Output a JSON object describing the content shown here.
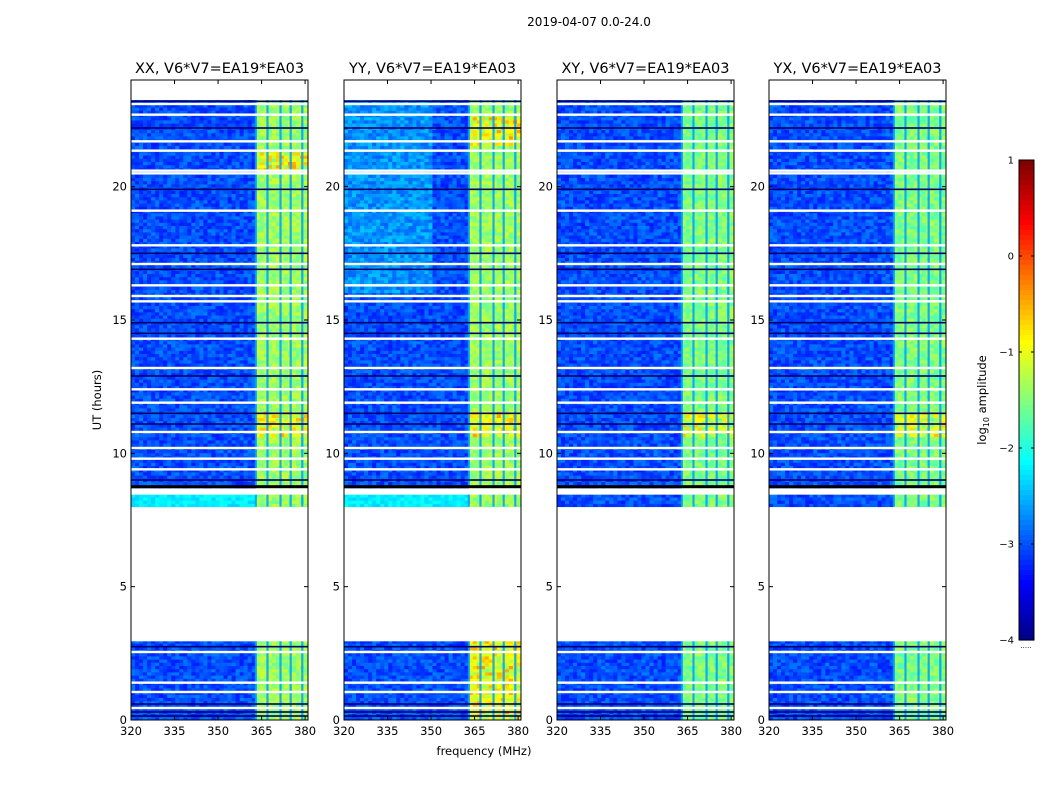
{
  "figure": {
    "suptitle": "2019-04-07 0.0-24.0",
    "xlabel": "frequency (MHz)",
    "ylabel": "UT (hours)",
    "colorbar_label_prefix": "log",
    "colorbar_label_sub": "10",
    "colorbar_label_suffix": " amplitude",
    "colorbar_extra": "....."
  },
  "chart_data": {
    "type": "heatmap",
    "title": "2019-04-07 0.0-24.0",
    "xlabel": "frequency (MHz)",
    "ylabel": "UT (hours)",
    "xlim": [
      320,
      381
    ],
    "ylim": [
      0,
      24
    ],
    "xticks": [
      320,
      335,
      350,
      365,
      380
    ],
    "yticks": [
      0,
      5,
      10,
      15,
      20
    ],
    "colorbar": {
      "label": "log10 amplitude",
      "range": [
        -4,
        1
      ],
      "ticks": [
        1,
        0,
        -1,
        -2,
        -3,
        -4
      ],
      "tick_labels": [
        "1",
        "0",
        "−1",
        "−2",
        "−3",
        "−4"
      ],
      "colormap": "jet"
    },
    "panels": [
      {
        "title": "XX, V6*V7=EA19*EA03",
        "pol": "XX"
      },
      {
        "title": "YY, V6*V7=EA19*EA03",
        "pol": "YY"
      },
      {
        "title": "XY, V6*V7=EA19*EA03",
        "pol": "XY"
      },
      {
        "title": "YX, V6*V7=EA19*EA03",
        "pol": "YX"
      }
    ],
    "data_gaps_hours": [
      [
        2.95,
        8.0
      ],
      [
        8.45,
        8.7
      ]
    ],
    "rfi_band_mhz": [
      362.5,
      380.0
    ],
    "rfi_subband_edges_mhz": [
      363,
      367,
      371.5,
      375,
      379
    ],
    "background_log10_amplitude": -3.0,
    "band_log10_amplitude_range": [
      -1.5,
      0.3
    ],
    "data_time_ranges_hours": [
      [
        0.0,
        2.95
      ],
      [
        8.0,
        8.45
      ],
      [
        8.7,
        23.25
      ]
    ]
  }
}
